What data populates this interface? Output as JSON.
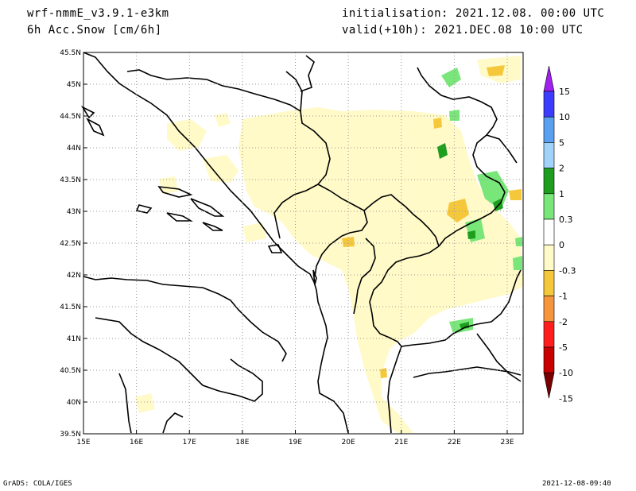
{
  "header": {
    "model": "wrf-nmmE_v3.9.1-e3km",
    "field": "6h Acc.Snow [cm/6h]",
    "init": "initialisation: 2021.12.08.  00:00 UTC",
    "valid": "valid(+10h): 2021.DEC.08 10:00 UTC"
  },
  "footer": {
    "left": "GrADS: COLA/IGES",
    "right": "2021-12-08-09:40"
  },
  "map": {
    "lat_labels": [
      "45.5N",
      "45N",
      "44.5N",
      "44N",
      "43.5N",
      "43N",
      "42.5N",
      "42N",
      "41.5N",
      "41N",
      "40.5N",
      "40N",
      "39.5N"
    ],
    "lon_labels": [
      "15E",
      "16E",
      "17E",
      "18E",
      "19E",
      "20E",
      "21E",
      "22E",
      "23E"
    ],
    "lat_range": [
      39.5,
      45.5
    ],
    "lon_range": [
      15.0,
      23.3
    ],
    "grid": "dotted"
  },
  "colorbar": {
    "levels": [
      "15",
      "10",
      "5",
      "2",
      "1",
      "0.3",
      "0",
      "-0.3",
      "-1",
      "-2",
      "-5",
      "-10",
      "-15"
    ],
    "colors": {
      "top_arrow": "#a020f0",
      "band_10_15": "#3c3cff",
      "band_5_10": "#5aa0f0",
      "band_2_5": "#a0d2fa",
      "band_1_2": "#1e9e1e",
      "band_03_1": "#78e678",
      "band_0": "#ffffff",
      "band_m03_m1": "#fffac8",
      "band_m1_m2": "#f5c83c",
      "band_m2_m5": "#f5963c",
      "band_m5_m10": "#ff1e1e",
      "band_m10_m15": "#c80000",
      "bottom_arrow": "#780000"
    }
  }
}
